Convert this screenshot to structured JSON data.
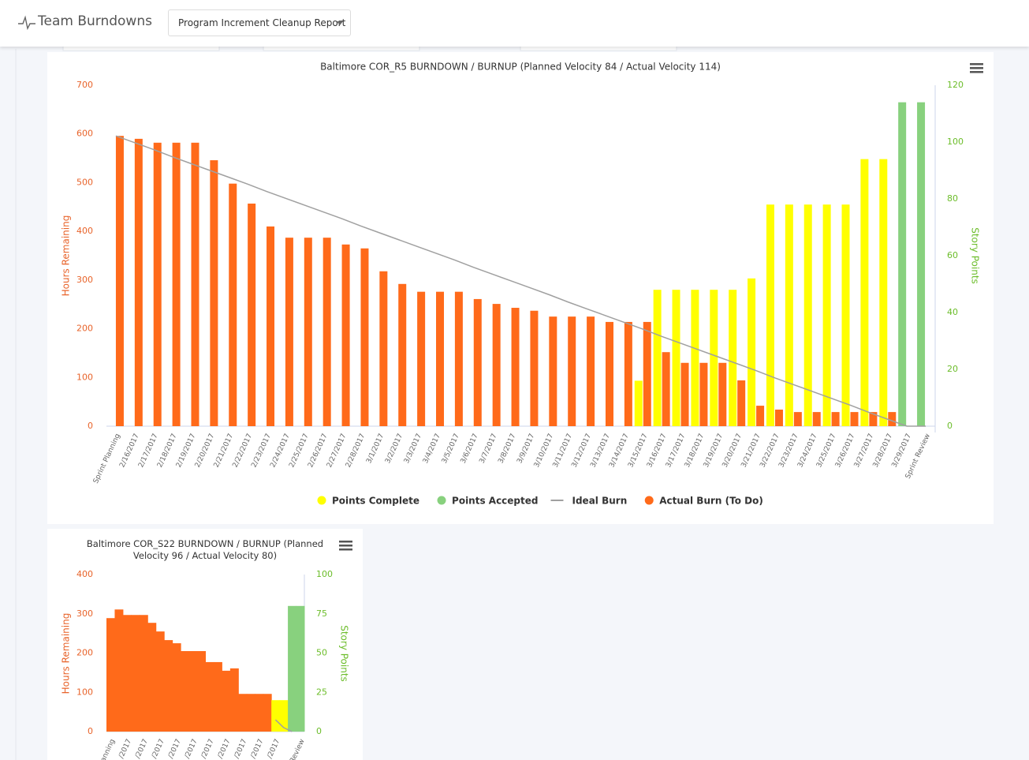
{
  "header": {
    "title": "Team Burndowns",
    "dropdown": "Program Increment Cleanup Report"
  },
  "chart_data": [
    {
      "type": "bar",
      "title": "Baltimore COR_R5 BURNDOWN / BURNUP (Planned Velocity 84 / Actual Velocity 114)",
      "y_label": "Hours Remaining",
      "y2_label": "Story Points",
      "categories": [
        "Sprint Planning",
        "2/16/2017",
        "2/17/2017",
        "2/18/2017",
        "2/19/2017",
        "2/20/2017",
        "2/21/2017",
        "2/22/2017",
        "2/23/2017",
        "2/24/2017",
        "2/25/2017",
        "2/26/2017",
        "2/27/2017",
        "2/28/2017",
        "3/1/2017",
        "3/2/2017",
        "3/3/2017",
        "3/4/2017",
        "3/5/2017",
        "3/6/2017",
        "3/7/2017",
        "3/8/2017",
        "3/9/2017",
        "3/10/2017",
        "3/11/2017",
        "3/12/2017",
        "3/13/2017",
        "3/14/2017",
        "3/15/2017",
        "3/16/2017",
        "3/17/2017",
        "3/18/2017",
        "3/19/2017",
        "3/20/2017",
        "3/21/2017",
        "3/22/2017",
        "3/23/2017",
        "3/24/2017",
        "3/25/2017",
        "3/26/2017",
        "3/27/2017",
        "3/28/2017",
        "3/29/2017",
        "Sprint Review"
      ],
      "series": [
        {
          "name": "Points Complete",
          "color": "#ffff00",
          "type": "bar",
          "axis": "y2",
          "values": [
            null,
            null,
            null,
            null,
            null,
            null,
            null,
            null,
            null,
            null,
            null,
            null,
            null,
            null,
            null,
            null,
            null,
            null,
            null,
            null,
            null,
            null,
            null,
            null,
            null,
            null,
            null,
            null,
            16,
            48,
            48,
            48,
            48,
            48,
            52,
            78,
            78,
            78,
            78,
            78,
            94,
            94,
            null,
            null
          ]
        },
        {
          "name": "Points Accepted",
          "color": "#88d17e",
          "type": "bar",
          "axis": "y2",
          "values": [
            null,
            null,
            null,
            null,
            null,
            null,
            null,
            null,
            null,
            null,
            null,
            null,
            null,
            null,
            null,
            null,
            null,
            null,
            null,
            null,
            null,
            null,
            null,
            null,
            null,
            null,
            null,
            null,
            null,
            null,
            null,
            null,
            null,
            null,
            null,
            null,
            null,
            null,
            null,
            null,
            null,
            null,
            114,
            114
          ]
        },
        {
          "name": "Ideal Burn",
          "color": "#a0a0a0",
          "type": "line",
          "values": [
            596,
            582,
            568,
            553,
            539,
            525,
            511,
            497,
            482,
            468,
            454,
            440,
            426,
            411,
            397,
            383,
            369,
            355,
            341,
            326,
            312,
            298,
            284,
            270,
            255,
            241,
            227,
            213,
            199,
            184,
            170,
            156,
            142,
            128,
            114,
            99,
            85,
            71,
            57,
            43,
            28,
            14,
            0,
            0
          ]
        },
        {
          "name": "Actual Burn (To Do)",
          "color": "#ff6a1a",
          "type": "bar",
          "values": [
            596,
            590,
            582,
            582,
            582,
            546,
            498,
            457,
            410,
            387,
            387,
            387,
            373,
            365,
            318,
            292,
            276,
            276,
            276,
            261,
            251,
            243,
            237,
            225,
            225,
            225,
            214,
            214,
            214,
            152,
            130,
            130,
            130,
            94,
            42,
            34,
            29,
            29,
            29,
            29,
            29,
            29,
            null,
            null
          ]
        }
      ],
      "ylim": [
        0,
        700
      ],
      "yticks": [
        0,
        100,
        200,
        300,
        400,
        500,
        600,
        700
      ],
      "y2lim": [
        0,
        120
      ],
      "y2ticks": [
        0,
        20,
        40,
        60,
        80,
        100,
        120
      ],
      "legend": "bottom"
    },
    {
      "type": "bar",
      "title": "Baltimore COR_S22 BURNDOWN / BURNUP (Planned Velocity 96 / Actual Velocity 80)",
      "y_label": "Hours Remaining",
      "y2_label": "Story Points",
      "categories": [
        "anning",
        null,
        "/2017",
        null,
        "/2017",
        null,
        "/2017",
        null,
        "/2017",
        null,
        "/2017",
        null,
        "/2017",
        null,
        "/2017",
        null,
        "/2017",
        null,
        "/2017",
        null,
        "/2017",
        null,
        null,
        "Review"
      ],
      "series": [
        {
          "color": "#ff6a1a",
          "type": "bar",
          "values": [
            289,
            311,
            297,
            297,
            297,
            277,
            255,
            233,
            225,
            205,
            205,
            205,
            177,
            177,
            155,
            161,
            96,
            96,
            96,
            96,
            null,
            null,
            null,
            null
          ]
        },
        {
          "color": "#ffff00",
          "type": "bar",
          "axis": "y2",
          "values": [
            null,
            null,
            null,
            null,
            null,
            null,
            null,
            null,
            null,
            null,
            null,
            null,
            null,
            null,
            null,
            null,
            null,
            null,
            null,
            null,
            20,
            20,
            null,
            null
          ]
        },
        {
          "color": "#88d17e",
          "type": "bar",
          "axis": "y2",
          "values": [
            null,
            null,
            null,
            null,
            null,
            null,
            null,
            null,
            null,
            null,
            null,
            null,
            null,
            null,
            null,
            null,
            null,
            null,
            null,
            null,
            null,
            null,
            80,
            80
          ]
        },
        {
          "color": "#a0a0a0",
          "type": "line",
          "values": [
            null,
            null,
            null,
            null,
            null,
            null,
            null,
            null,
            null,
            null,
            null,
            null,
            null,
            null,
            null,
            null,
            null,
            null,
            null,
            null,
            30,
            10,
            0,
            null
          ]
        }
      ],
      "ylim": [
        0,
        400
      ],
      "yticks": [
        0,
        100,
        200,
        300,
        400
      ],
      "y2lim": [
        0,
        100
      ],
      "y2ticks": [
        0,
        25,
        50,
        75,
        100
      ]
    }
  ]
}
